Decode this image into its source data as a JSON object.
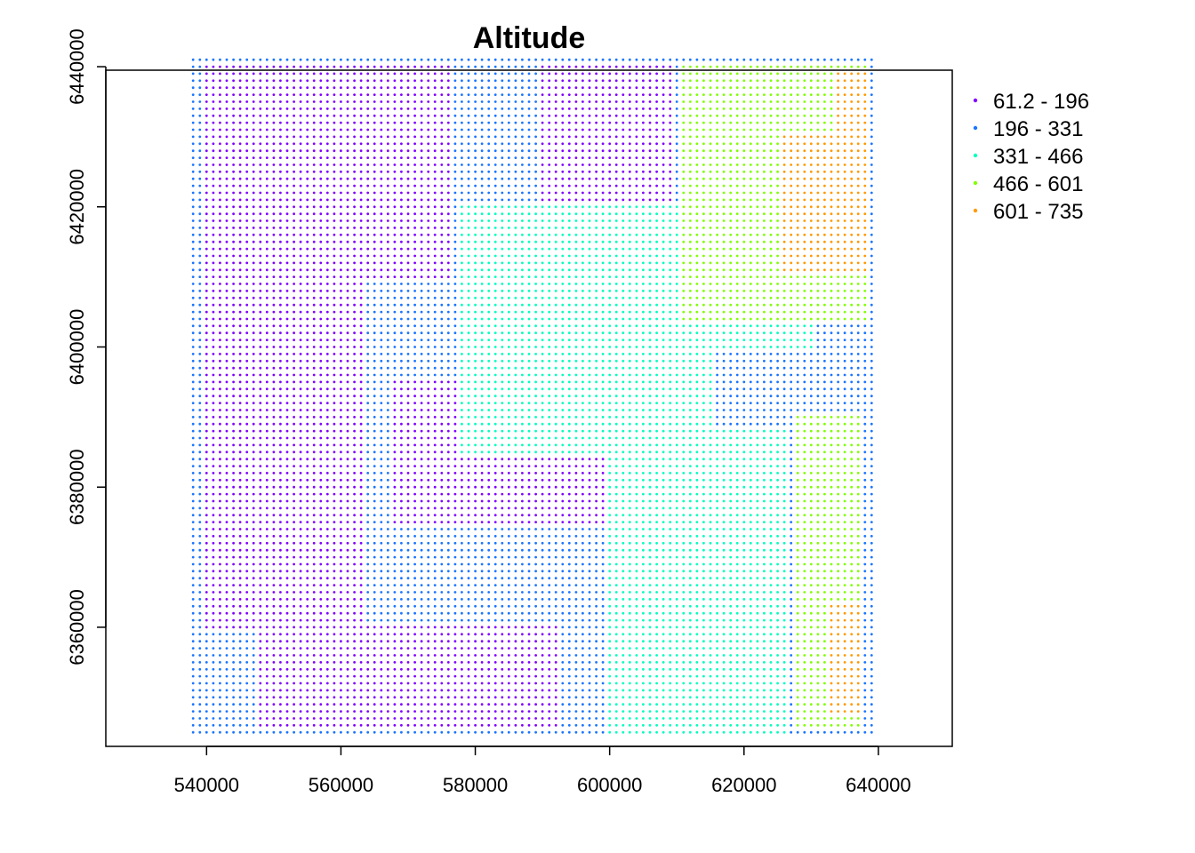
{
  "chart_data": {
    "type": "scatter",
    "title": "Altitude",
    "xlabel": "",
    "ylabel": "",
    "xlim": [
      525000,
      651000
    ],
    "ylim": [
      6343000,
      6439500
    ],
    "x_ticks": [
      540000,
      560000,
      580000,
      600000,
      620000,
      640000
    ],
    "x_tick_labels": [
      "540000",
      "560000",
      "580000",
      "600000",
      "620000",
      "640000"
    ],
    "y_ticks": [
      6360000,
      6380000,
      6400000,
      6420000,
      6440000
    ],
    "y_tick_labels": [
      "6360000",
      "6380000",
      "6400000",
      "6420000",
      "6440000"
    ],
    "grid": false,
    "legend_position": "top-right",
    "grid_spacing": 1000,
    "extent": {
      "x_range": [
        538000,
        639000
      ],
      "y_range": [
        6345000,
        6441000
      ]
    },
    "classes": [
      {
        "label": "61.2 - 196",
        "range": [
          61.2,
          196
        ],
        "color": "#8000ff"
      },
      {
        "label": "196 - 331",
        "range": [
          196,
          331
        ],
        "color": "#1a75ff"
      },
      {
        "label": "331 - 466",
        "range": [
          331,
          466
        ],
        "color": "#00ffbf"
      },
      {
        "label": "466 - 601",
        "range": [
          466,
          601
        ],
        "color": "#80ff00"
      },
      {
        "label": "601 - 735",
        "range": [
          601,
          735
        ],
        "color": "#ff9900"
      }
    ],
    "regions": [
      {
        "class": "601 - 735",
        "x": [
          626000,
          638000
        ],
        "y": [
          6411000,
          6430000
        ]
      },
      {
        "class": "601 - 735",
        "x": [
          634000,
          638000
        ],
        "y": [
          6430000,
          6439000
        ]
      },
      {
        "class": "601 - 735",
        "x": [
          633000,
          637000
        ],
        "y": [
          6348000,
          6363000
        ]
      },
      {
        "class": "466 - 601",
        "x": [
          611000,
          638000
        ],
        "y": [
          6404000,
          6440000
        ]
      },
      {
        "class": "466 - 601",
        "x": [
          628000,
          637000
        ],
        "y": [
          6346000,
          6390000
        ]
      },
      {
        "class": "331 - 466",
        "x": [
          578000,
          615000
        ],
        "y": [
          6385000,
          6420000
        ]
      },
      {
        "class": "331 - 466",
        "x": [
          600000,
          626000
        ],
        "y": [
          6345000,
          6388000
        ]
      },
      {
        "class": "331 - 466",
        "x": [
          612000,
          630000
        ],
        "y": [
          6400000,
          6440000
        ]
      },
      {
        "class": "61.2 - 196",
        "x": [
          540000,
          576000
        ],
        "y": [
          6410000,
          6440000
        ]
      },
      {
        "class": "61.2 - 196",
        "x": [
          540000,
          563000
        ],
        "y": [
          6360000,
          6410000
        ]
      },
      {
        "class": "61.2 - 196",
        "x": [
          548000,
          592000
        ],
        "y": [
          6346000,
          6360000
        ]
      },
      {
        "class": "61.2 - 196",
        "x": [
          590000,
          609000
        ],
        "y": [
          6420000,
          6440000
        ]
      },
      {
        "class": "61.2 - 196",
        "x": [
          568000,
          600000
        ],
        "y": [
          6375000,
          6395000
        ]
      }
    ]
  }
}
